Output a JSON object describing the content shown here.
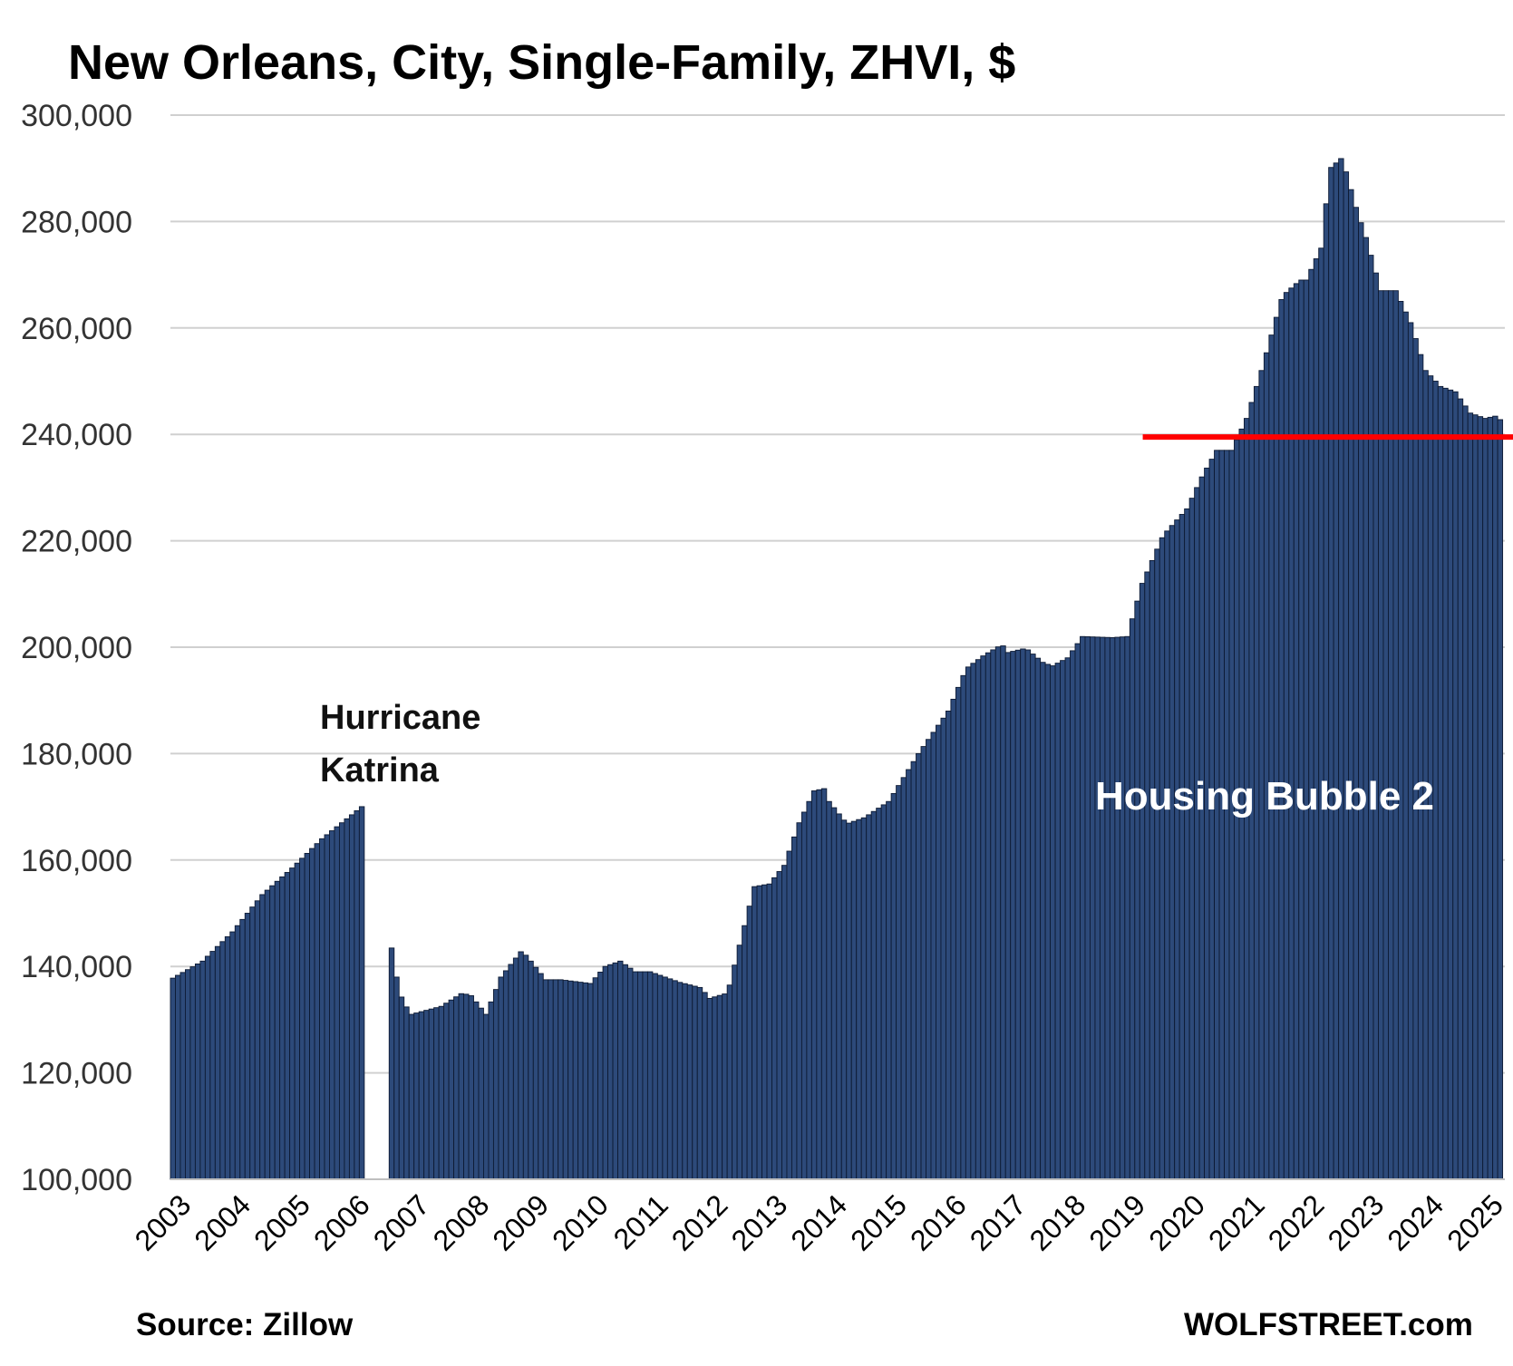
{
  "title": "New Orleans, City, Single-Family, ZHVI, $",
  "footer": {
    "source": "Source: Zillow",
    "brand": "WOLFSTREET.com"
  },
  "colors": {
    "bar": "#2d4a7a",
    "bar_edge": "#0d1a33",
    "grid": "#d0d0d0",
    "reference_line": "#ff0000",
    "bubble_label": "#ffffff"
  },
  "chart_data": {
    "type": "bar",
    "title": "New Orleans, City, Single-Family, ZHVI, $",
    "xlabel": "",
    "ylabel": "",
    "ylim": [
      100000,
      300000
    ],
    "xlim": [
      2003.0,
      2025.37
    ],
    "grid": true,
    "legend": "none",
    "x_ticks": [
      "2003",
      "2004",
      "2005",
      "2006",
      "2007",
      "2008",
      "2009",
      "2010",
      "2011",
      "2012",
      "2013",
      "2014",
      "2015",
      "2016",
      "2017",
      "2018",
      "2019",
      "2020",
      "2021",
      "2022",
      "2023",
      "2024",
      "2025"
    ],
    "y_ticks": [
      100000,
      120000,
      140000,
      160000,
      180000,
      200000,
      220000,
      240000,
      260000,
      280000,
      300000
    ],
    "y_tick_labels": [
      "100,000",
      "120,000",
      "140,000",
      "160,000",
      "180,000",
      "200,000",
      "220,000",
      "240,000",
      "260,000",
      "280,000",
      "300,000"
    ],
    "gap": {
      "start": "2006-04",
      "end": "2006-09",
      "note": "no data (Hurricane Katrina)"
    },
    "series": [
      {
        "x": [
          2003.0,
          2003.5,
          2004.0,
          2004.5,
          2005.0,
          2005.5,
          2006.0,
          2006.25,
          2006.75,
          2006.85,
          2007.0,
          2007.5,
          2007.85,
          2008.0,
          2008.25,
          2008.5,
          2008.85,
          2009.0,
          2009.25,
          2009.5,
          2010.0,
          2010.25,
          2010.5,
          2010.75,
          2011.0,
          2011.5,
          2011.85,
          2012.0,
          2012.3,
          2012.5,
          2012.75,
          2013.0,
          2013.25,
          2013.5,
          2013.75,
          2013.95,
          2014.0,
          2014.3,
          2014.6,
          2015.0,
          2015.5,
          2015.75,
          2016.0,
          2016.3,
          2016.6,
          2016.9,
          2017.0,
          2017.3,
          2017.6,
          2017.75,
          2018.0,
          2018.25,
          2018.75,
          2019.0,
          2019.25,
          2019.6,
          2020.0,
          2020.25,
          2020.5,
          2020.75,
          2021.0,
          2021.25,
          2021.6,
          2021.9,
          2022.0,
          2022.25,
          2022.4,
          2022.6,
          2022.85,
          2023.0,
          2023.25,
          2023.5,
          2023.75,
          2024.0,
          2024.25,
          2024.5,
          2024.75,
          2025.0,
          2025.2,
          2025.37
        ],
        "values": [
          137800,
          141000,
          146500,
          153500,
          158500,
          164000,
          168500,
          170800,
          138000,
          133500,
          131000,
          132500,
          135000,
          134500,
          131000,
          138000,
          143000,
          141000,
          137500,
          137500,
          136800,
          140000,
          141000,
          139000,
          139000,
          137000,
          136000,
          134000,
          135000,
          144000,
          155000,
          155500,
          159000,
          167000,
          173000,
          173500,
          171000,
          166800,
          168000,
          171000,
          180000,
          184000,
          188000,
          196000,
          198500,
          200500,
          199000,
          199800,
          197000,
          196500,
          198000,
          202000,
          201800,
          202000,
          212000,
          221000,
          226000,
          232000,
          237000,
          237000,
          243000,
          252000,
          266000,
          269000,
          269000,
          275000,
          290000,
          292000,
          282000,
          277000,
          267000,
          267000,
          261000,
          252000,
          249000,
          248000,
          244000,
          243000,
          243500,
          241000
        ]
      }
    ],
    "annotations": [
      {
        "text_lines": [
          "Hurricane",
          "Katrina"
        ]
      },
      {
        "text": "Housing Bubble 2"
      },
      {
        "type": "reference_line",
        "y": 239500,
        "x_start": 2019.3,
        "x_end": 2025.37
      }
    ]
  }
}
